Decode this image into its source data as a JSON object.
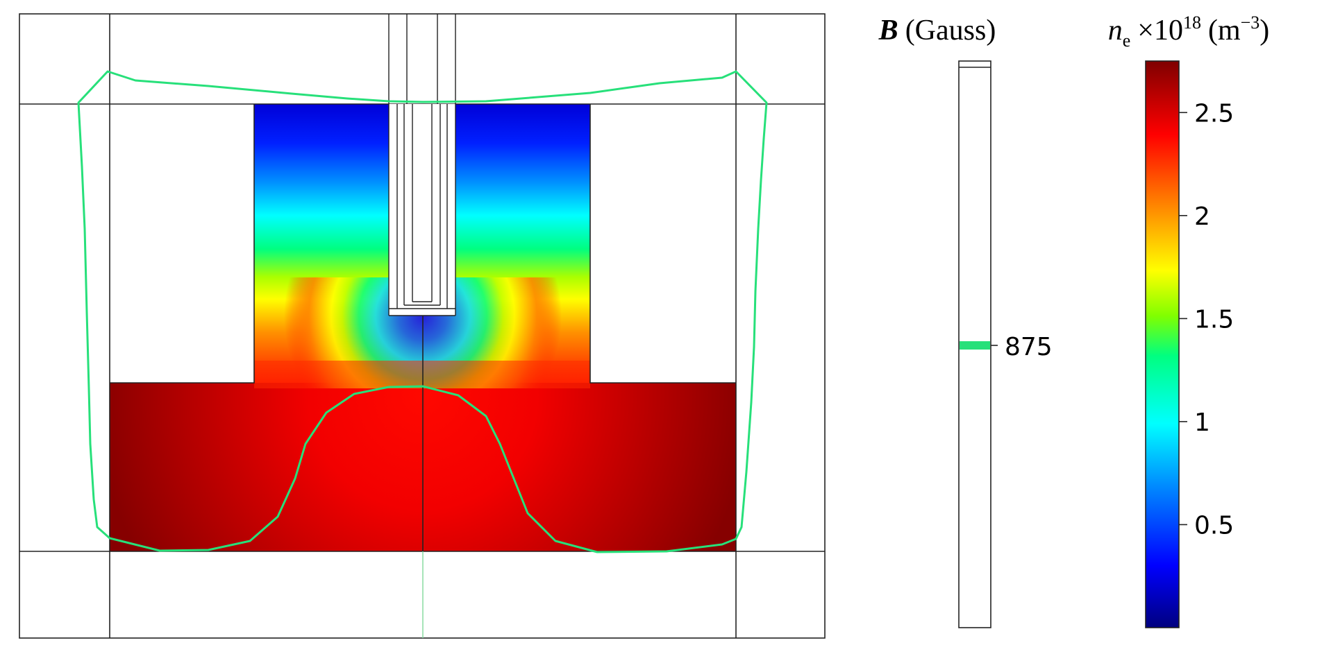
{
  "figure": {
    "b_legend": {
      "symbol": "B",
      "unit": "(Gauss)",
      "contour_value": "875",
      "contour_color": "#27e07a"
    },
    "density_legend": {
      "symbol": "n",
      "subscript": "e",
      "multiplier": "×10",
      "exponent": "18",
      "unit_open": "(m",
      "unit_exp": "−3",
      "unit_close": ")",
      "ticks": [
        {
          "label": "2.5",
          "value": 2.5
        },
        {
          "label": "2",
          "value": 2.0
        },
        {
          "label": "1.5",
          "value": 1.5
        },
        {
          "label": "1",
          "value": 1.0
        },
        {
          "label": "0.5",
          "value": 0.5
        }
      ],
      "range": [
        0.0,
        2.75
      ],
      "colormap": [
        "#00007f",
        "#0000ff",
        "#0080ff",
        "#00ffff",
        "#00ff80",
        "#80ff00",
        "#ffff00",
        "#ff8000",
        "#ff0000",
        "#7f0000"
      ]
    },
    "contour_line_color": "#27e07a",
    "outline_color": "#222222"
  }
}
